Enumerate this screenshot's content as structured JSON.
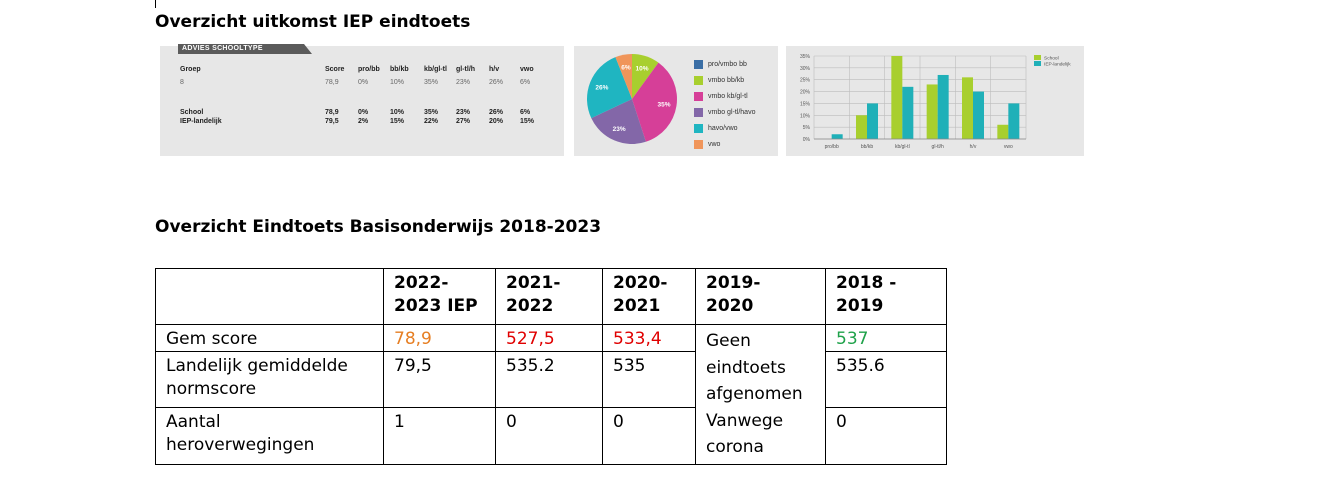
{
  "title_iep": "Overzicht uitkomst IEP eindtoets",
  "title_overzicht": "Overzicht Eindtoets Basisonderwijs 2018-2023",
  "advies": {
    "header": "ADVIES SCHOOLTYPE",
    "groep_label": "Groep",
    "groep_value": "8",
    "columns": [
      "Score",
      "pro/bb",
      "bb/kb",
      "kb/gl-tl",
      "gl-tl/h",
      "h/v",
      "vwo"
    ],
    "advies_row": [
      "78,9",
      "0%",
      "10%",
      "35%",
      "23%",
      "26%",
      "6%"
    ],
    "school_label": "School",
    "school_row": [
      "78,9",
      "0%",
      "10%",
      "35%",
      "23%",
      "26%",
      "6%"
    ],
    "landelijk_label": "IEP-landelijk",
    "landelijk_row": [
      "79,5",
      "2%",
      "15%",
      "22%",
      "27%",
      "20%",
      "15%"
    ]
  },
  "pie": {
    "slices": [
      {
        "label": "pro/vmbo bb",
        "value": 0,
        "text": "",
        "color": "#3a6ea5"
      },
      {
        "label": "vmbo bb/kb",
        "value": 10,
        "text": "10%",
        "color": "#a8cf2e"
      },
      {
        "label": "vmbo kb/gl-tl",
        "value": 35,
        "text": "35%",
        "color": "#d63f98"
      },
      {
        "label": "vmbo gl-tl/havo",
        "value": 23,
        "text": "23%",
        "color": "#8367a8"
      },
      {
        "label": "havo/vwo",
        "value": 26,
        "text": "26%",
        "color": "#1fb5c1"
      },
      {
        "label": "vwo",
        "value": 6,
        "text": "6%",
        "color": "#f0955a"
      }
    ]
  },
  "chart_data": {
    "type": "bar",
    "categories": [
      "pro/bb",
      "bb/kb",
      "kb/gl-tl",
      "gl-tl/h",
      "h/v",
      "vwo"
    ],
    "series": [
      {
        "name": "School",
        "values": [
          0,
          10,
          35,
          23,
          26,
          6
        ],
        "color": "#a8cf2e"
      },
      {
        "name": "IEP-landelijk",
        "values": [
          2,
          15,
          22,
          27,
          20,
          15
        ],
        "color": "#1fb0b8"
      }
    ],
    "yticks": [
      "0%",
      "5%",
      "10%",
      "15%",
      "20%",
      "25%",
      "30%",
      "35%"
    ],
    "ylim": [
      0,
      35
    ],
    "legend": "top-right",
    "grid": true
  },
  "table": {
    "headers": [
      "",
      "2022-2023 IEP",
      "2021-2022",
      "2020-2021",
      "2019-2020",
      "2018 - 2019"
    ],
    "header_lines": [
      [
        ""
      ],
      [
        "2022-",
        "2023 IEP"
      ],
      [
        "2021-",
        "2022"
      ],
      [
        "2020-",
        "2021"
      ],
      [
        "2019-",
        "2020"
      ],
      [
        "2018 -",
        "2019"
      ]
    ],
    "row_gem": [
      "Gem score",
      "78,9",
      "527,5",
      "533,4",
      "537"
    ],
    "row_land": [
      "Landelijk gemiddelde normscore",
      "79,5",
      "535.2",
      "535",
      "535.6"
    ],
    "row_land_lines": [
      "Landelijk gemiddelde",
      "normscore"
    ],
    "row_herov": [
      "Aantal heroverwegingen",
      "1",
      "0",
      "0",
      "0"
    ],
    "row_herov_lines": [
      "Aantal",
      "heroverwegingen"
    ],
    "note_2019": "Geen eindtoets afgenomen Vanwege corona",
    "note_lines": [
      "Geen",
      "eindtoets",
      "afgenomen",
      "Vanwege",
      "corona"
    ]
  }
}
